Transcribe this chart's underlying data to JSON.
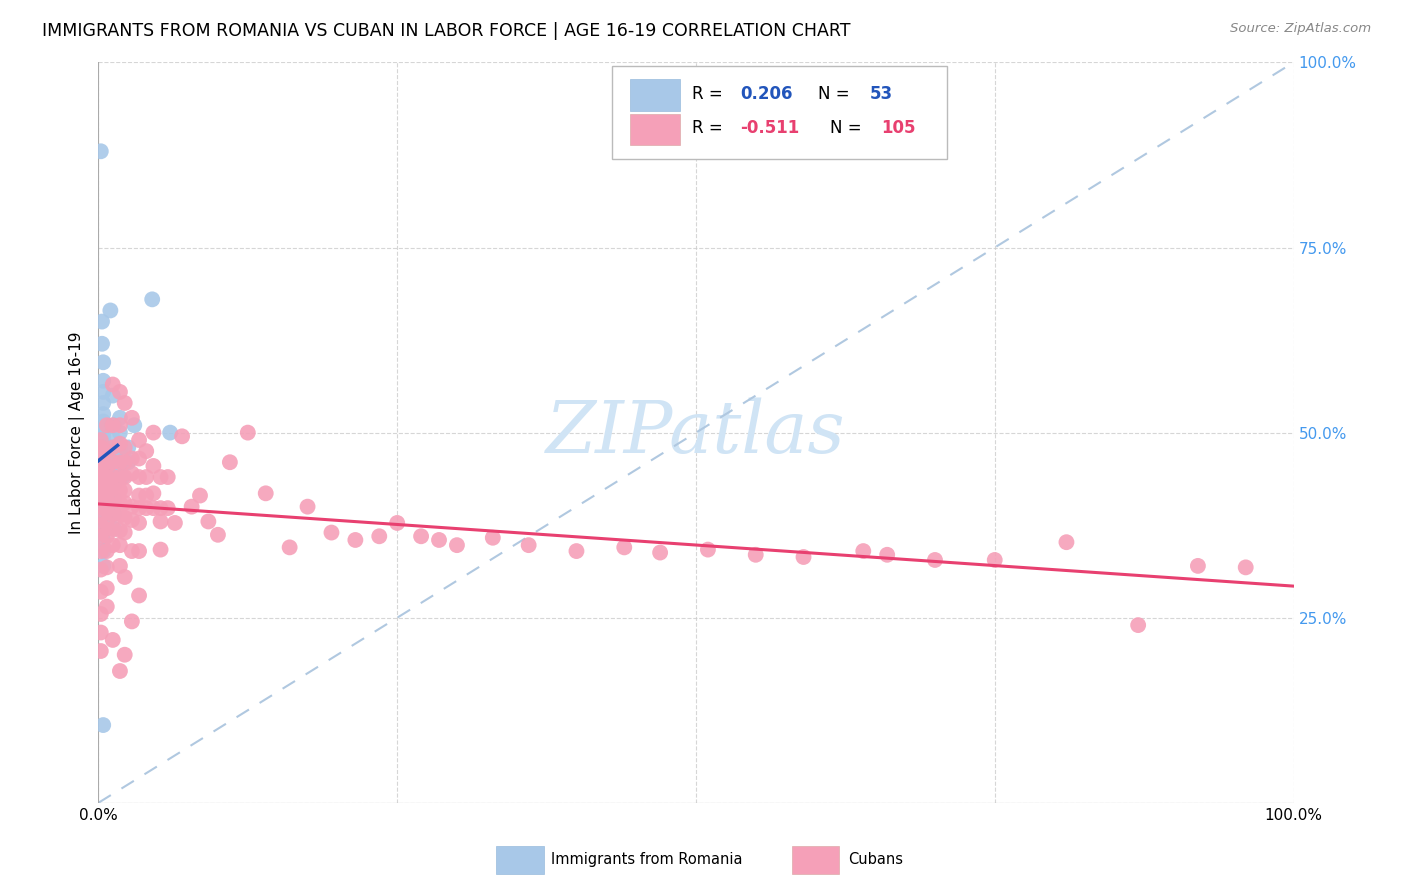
{
  "title": "IMMIGRANTS FROM ROMANIA VS CUBAN IN LABOR FORCE | AGE 16-19 CORRELATION CHART",
  "source": "Source: ZipAtlas.com",
  "ylabel": "In Labor Force | Age 16-19",
  "xlim": [
    0.0,
    1.0
  ],
  "ylim": [
    0.0,
    1.0
  ],
  "xticks": [
    0.0,
    0.25,
    0.5,
    0.75,
    1.0
  ],
  "yticks": [
    0.0,
    0.25,
    0.5,
    0.75,
    1.0
  ],
  "xticklabels": [
    "0.0%",
    "",
    "",
    "",
    "100.0%"
  ],
  "yticklabels": [
    "",
    "",
    "",
    "",
    ""
  ],
  "right_yticklabels": [
    "",
    "25.0%",
    "50.0%",
    "75.0%",
    "100.0%"
  ],
  "romania_color": "#a8c8e8",
  "cuba_color": "#f5a0b8",
  "romania_line_color": "#2255bb",
  "cuba_line_color": "#e84070",
  "diag_color": "#b0c8e0",
  "right_tick_color": "#4499ee",
  "watermark_color": "#d0e4f5",
  "romania_points": [
    [
      0.002,
      0.88
    ],
    [
      0.003,
      0.65
    ],
    [
      0.003,
      0.62
    ],
    [
      0.004,
      0.595
    ],
    [
      0.004,
      0.57
    ],
    [
      0.004,
      0.555
    ],
    [
      0.004,
      0.54
    ],
    [
      0.004,
      0.525
    ],
    [
      0.004,
      0.515
    ],
    [
      0.004,
      0.505
    ],
    [
      0.004,
      0.5
    ],
    [
      0.004,
      0.495
    ],
    [
      0.004,
      0.488
    ],
    [
      0.004,
      0.48
    ],
    [
      0.004,
      0.472
    ],
    [
      0.004,
      0.465
    ],
    [
      0.004,
      0.455
    ],
    [
      0.004,
      0.445
    ],
    [
      0.004,
      0.435
    ],
    [
      0.004,
      0.425
    ],
    [
      0.004,
      0.415
    ],
    [
      0.004,
      0.405
    ],
    [
      0.004,
      0.395
    ],
    [
      0.004,
      0.385
    ],
    [
      0.004,
      0.375
    ],
    [
      0.004,
      0.365
    ],
    [
      0.004,
      0.355
    ],
    [
      0.004,
      0.34
    ],
    [
      0.004,
      0.32
    ],
    [
      0.004,
      0.105
    ],
    [
      0.01,
      0.665
    ],
    [
      0.012,
      0.55
    ],
    [
      0.013,
      0.51
    ],
    [
      0.013,
      0.49
    ],
    [
      0.013,
      0.47
    ],
    [
      0.013,
      0.45
    ],
    [
      0.013,
      0.43
    ],
    [
      0.013,
      0.41
    ],
    [
      0.013,
      0.39
    ],
    [
      0.013,
      0.37
    ],
    [
      0.015,
      0.48
    ],
    [
      0.015,
      0.46
    ],
    [
      0.015,
      0.44
    ],
    [
      0.018,
      0.52
    ],
    [
      0.018,
      0.5
    ],
    [
      0.018,
      0.48
    ],
    [
      0.02,
      0.46
    ],
    [
      0.02,
      0.44
    ],
    [
      0.025,
      0.48
    ],
    [
      0.025,
      0.46
    ],
    [
      0.03,
      0.51
    ],
    [
      0.045,
      0.68
    ],
    [
      0.06,
      0.5
    ]
  ],
  "cuba_points": [
    [
      0.002,
      0.49
    ],
    [
      0.002,
      0.48
    ],
    [
      0.002,
      0.47
    ],
    [
      0.002,
      0.46
    ],
    [
      0.002,
      0.45
    ],
    [
      0.002,
      0.44
    ],
    [
      0.002,
      0.43
    ],
    [
      0.002,
      0.42
    ],
    [
      0.002,
      0.41
    ],
    [
      0.002,
      0.4
    ],
    [
      0.002,
      0.388
    ],
    [
      0.002,
      0.375
    ],
    [
      0.002,
      0.36
    ],
    [
      0.002,
      0.34
    ],
    [
      0.002,
      0.315
    ],
    [
      0.002,
      0.285
    ],
    [
      0.002,
      0.255
    ],
    [
      0.002,
      0.23
    ],
    [
      0.002,
      0.205
    ],
    [
      0.007,
      0.51
    ],
    [
      0.007,
      0.475
    ],
    [
      0.007,
      0.455
    ],
    [
      0.007,
      0.44
    ],
    [
      0.007,
      0.425
    ],
    [
      0.007,
      0.41
    ],
    [
      0.007,
      0.395
    ],
    [
      0.007,
      0.378
    ],
    [
      0.007,
      0.36
    ],
    [
      0.007,
      0.34
    ],
    [
      0.007,
      0.318
    ],
    [
      0.007,
      0.29
    ],
    [
      0.007,
      0.265
    ],
    [
      0.012,
      0.565
    ],
    [
      0.012,
      0.51
    ],
    [
      0.012,
      0.48
    ],
    [
      0.012,
      0.46
    ],
    [
      0.012,
      0.44
    ],
    [
      0.012,
      0.425
    ],
    [
      0.012,
      0.408
    ],
    [
      0.012,
      0.39
    ],
    [
      0.012,
      0.37
    ],
    [
      0.012,
      0.348
    ],
    [
      0.012,
      0.22
    ],
    [
      0.018,
      0.555
    ],
    [
      0.018,
      0.51
    ],
    [
      0.018,
      0.485
    ],
    [
      0.018,
      0.46
    ],
    [
      0.018,
      0.44
    ],
    [
      0.018,
      0.422
    ],
    [
      0.018,
      0.405
    ],
    [
      0.018,
      0.388
    ],
    [
      0.018,
      0.368
    ],
    [
      0.018,
      0.348
    ],
    [
      0.018,
      0.32
    ],
    [
      0.018,
      0.178
    ],
    [
      0.022,
      0.54
    ],
    [
      0.022,
      0.48
    ],
    [
      0.022,
      0.46
    ],
    [
      0.022,
      0.44
    ],
    [
      0.022,
      0.422
    ],
    [
      0.022,
      0.405
    ],
    [
      0.022,
      0.385
    ],
    [
      0.022,
      0.365
    ],
    [
      0.022,
      0.305
    ],
    [
      0.022,
      0.2
    ],
    [
      0.028,
      0.52
    ],
    [
      0.028,
      0.465
    ],
    [
      0.028,
      0.445
    ],
    [
      0.028,
      0.4
    ],
    [
      0.028,
      0.382
    ],
    [
      0.028,
      0.34
    ],
    [
      0.028,
      0.245
    ],
    [
      0.034,
      0.49
    ],
    [
      0.034,
      0.465
    ],
    [
      0.034,
      0.44
    ],
    [
      0.034,
      0.415
    ],
    [
      0.034,
      0.398
    ],
    [
      0.034,
      0.378
    ],
    [
      0.034,
      0.34
    ],
    [
      0.034,
      0.28
    ],
    [
      0.04,
      0.475
    ],
    [
      0.04,
      0.44
    ],
    [
      0.04,
      0.415
    ],
    [
      0.04,
      0.398
    ],
    [
      0.046,
      0.5
    ],
    [
      0.046,
      0.455
    ],
    [
      0.046,
      0.418
    ],
    [
      0.046,
      0.398
    ],
    [
      0.052,
      0.44
    ],
    [
      0.052,
      0.398
    ],
    [
      0.052,
      0.38
    ],
    [
      0.052,
      0.342
    ],
    [
      0.058,
      0.44
    ],
    [
      0.058,
      0.398
    ],
    [
      0.064,
      0.378
    ],
    [
      0.07,
      0.495
    ],
    [
      0.078,
      0.4
    ],
    [
      0.085,
      0.415
    ],
    [
      0.092,
      0.38
    ],
    [
      0.1,
      0.362
    ],
    [
      0.11,
      0.46
    ],
    [
      0.125,
      0.5
    ],
    [
      0.14,
      0.418
    ],
    [
      0.16,
      0.345
    ],
    [
      0.175,
      0.4
    ],
    [
      0.195,
      0.365
    ],
    [
      0.215,
      0.355
    ],
    [
      0.235,
      0.36
    ],
    [
      0.25,
      0.378
    ],
    [
      0.27,
      0.36
    ],
    [
      0.285,
      0.355
    ],
    [
      0.3,
      0.348
    ],
    [
      0.33,
      0.358
    ],
    [
      0.36,
      0.348
    ],
    [
      0.4,
      0.34
    ],
    [
      0.44,
      0.345
    ],
    [
      0.47,
      0.338
    ],
    [
      0.51,
      0.342
    ],
    [
      0.55,
      0.335
    ],
    [
      0.59,
      0.332
    ],
    [
      0.64,
      0.34
    ],
    [
      0.66,
      0.335
    ],
    [
      0.7,
      0.328
    ],
    [
      0.75,
      0.328
    ],
    [
      0.81,
      0.352
    ],
    [
      0.87,
      0.24
    ],
    [
      0.92,
      0.32
    ],
    [
      0.96,
      0.318
    ]
  ]
}
